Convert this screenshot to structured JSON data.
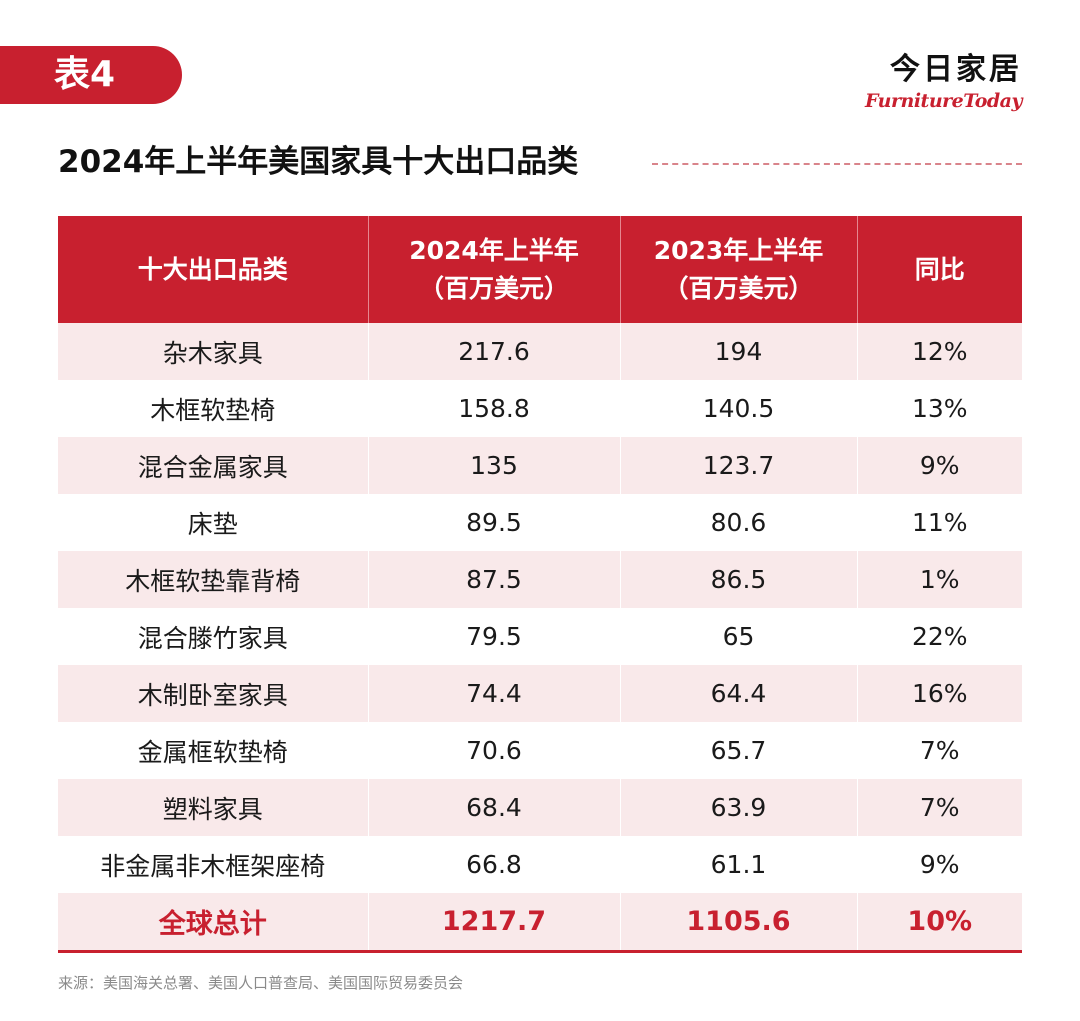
{
  "tag": {
    "label": "表4"
  },
  "brand": {
    "cn": "今日家居",
    "en": "FurnitureToday"
  },
  "title": "2024年上半年美国家具十大出口品类",
  "table": {
    "headers": [
      {
        "line1": "十大出口品类",
        "line2": ""
      },
      {
        "line1": "2024年上半年",
        "line2": "（百万美元）"
      },
      {
        "line1": "2023年上半年",
        "line2": "（百万美元）"
      },
      {
        "line1": "同比",
        "line2": ""
      }
    ],
    "rows": [
      {
        "category": "杂木家具",
        "h1_2024": "217.6",
        "h1_2023": "194",
        "yoy": "12%"
      },
      {
        "category": "木框软垫椅",
        "h1_2024": "158.8",
        "h1_2023": "140.5",
        "yoy": "13%"
      },
      {
        "category": "混合金属家具",
        "h1_2024": "135",
        "h1_2023": "123.7",
        "yoy": "9%"
      },
      {
        "category": "床垫",
        "h1_2024": "89.5",
        "h1_2023": "80.6",
        "yoy": "11%"
      },
      {
        "category": "木框软垫靠背椅",
        "h1_2024": "87.5",
        "h1_2023": "86.5",
        "yoy": "1%"
      },
      {
        "category": "混合滕竹家具",
        "h1_2024": "79.5",
        "h1_2023": "65",
        "yoy": "22%"
      },
      {
        "category": "木制卧室家具",
        "h1_2024": "74.4",
        "h1_2023": "64.4",
        "yoy": "16%"
      },
      {
        "category": "金属框软垫椅",
        "h1_2024": "70.6",
        "h1_2023": "65.7",
        "yoy": "7%"
      },
      {
        "category": "塑料家具",
        "h1_2024": "68.4",
        "h1_2023": "63.9",
        "yoy": "7%"
      },
      {
        "category": "非金属非木框架座椅",
        "h1_2024": "66.8",
        "h1_2023": "61.1",
        "yoy": "9%"
      }
    ],
    "total": {
      "category": "全球总计",
      "h1_2024": "1217.7",
      "h1_2023": "1105.6",
      "yoy": "10%"
    }
  },
  "source": "来源：美国海关总署、美国人口普查局、美国国际贸易委员会",
  "colors": {
    "accent": "#c8202f",
    "row_tint": "#f9e9ea"
  }
}
